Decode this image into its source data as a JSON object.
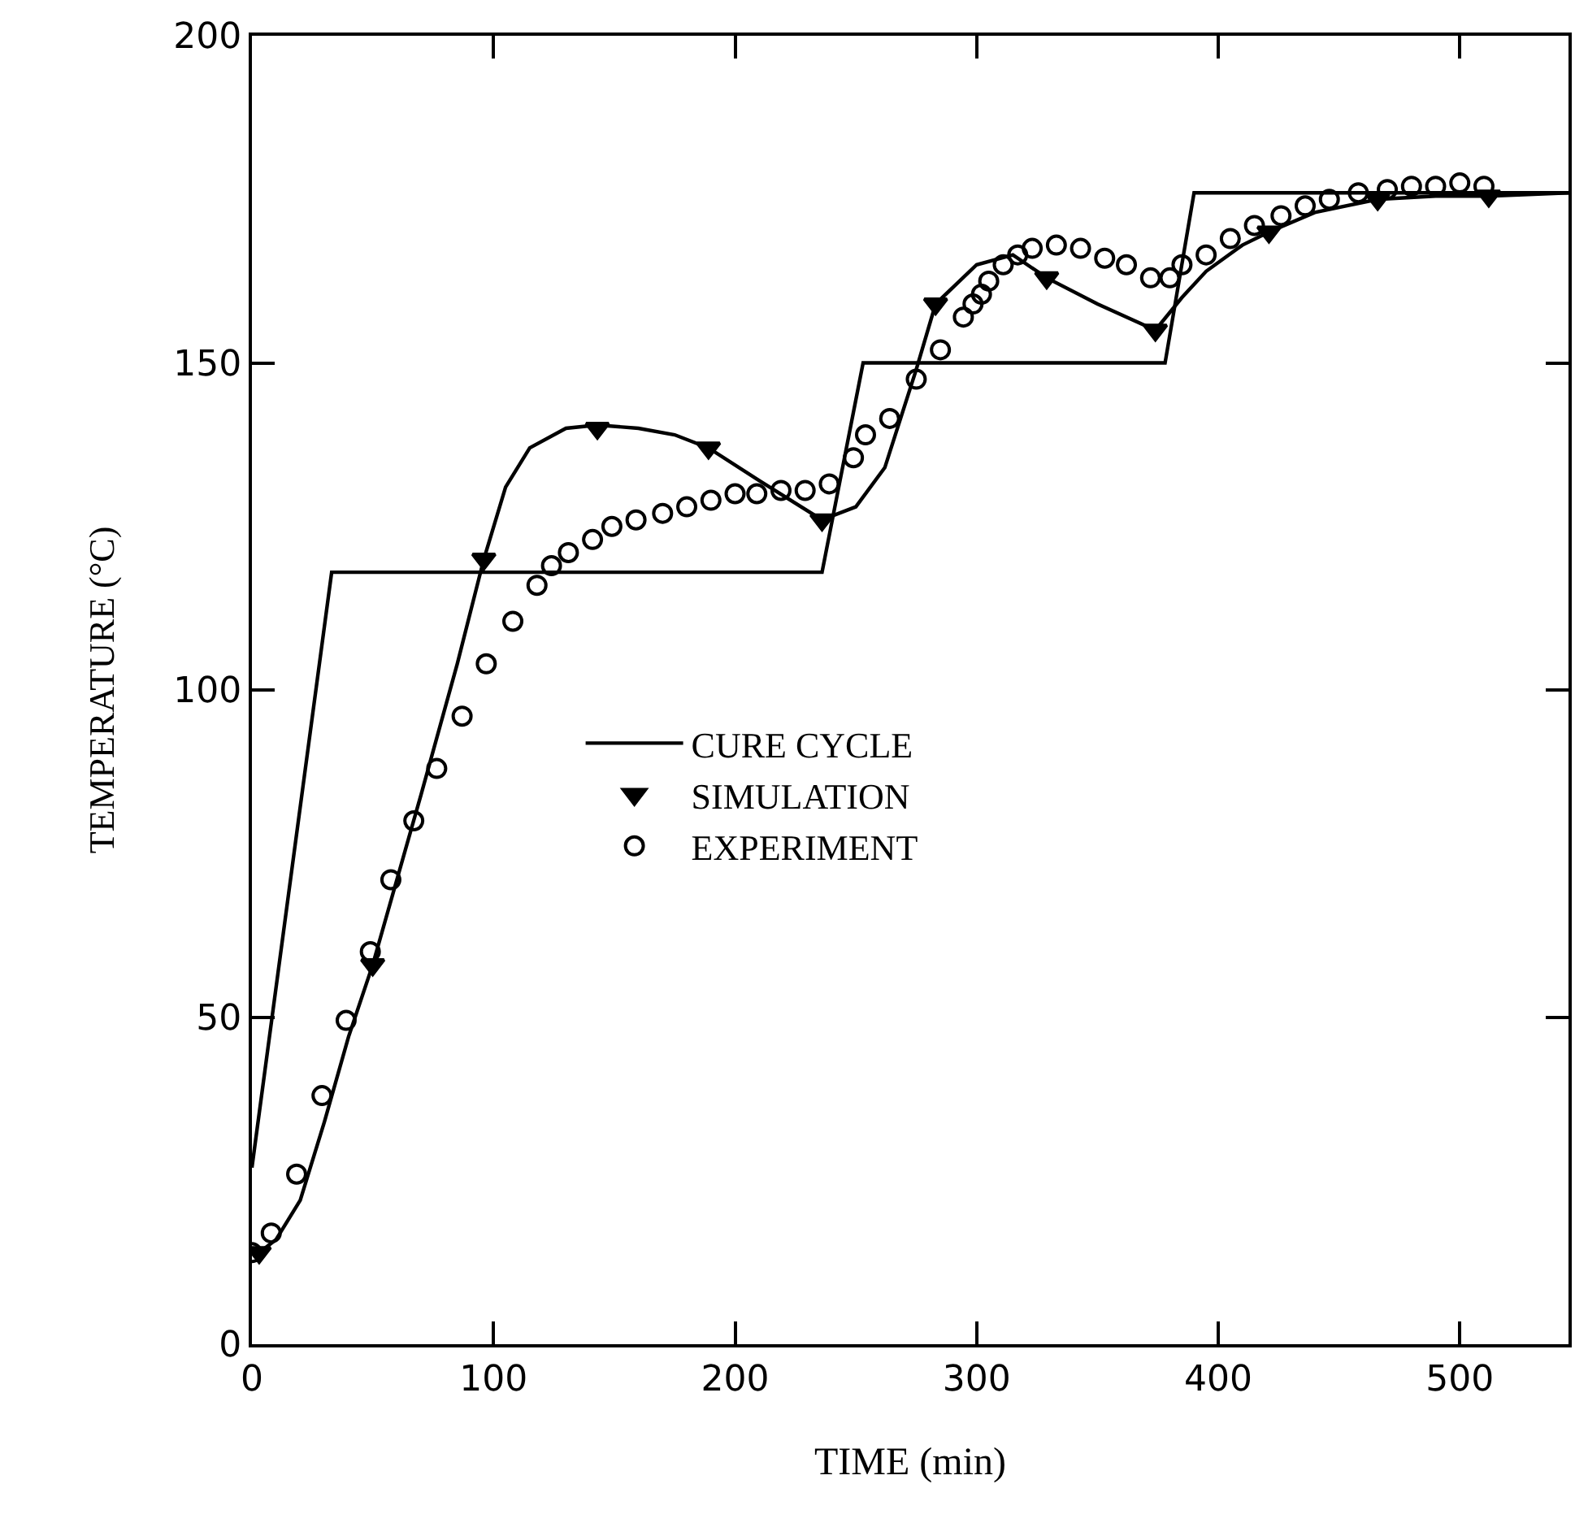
{
  "chart_data": {
    "type": "line",
    "xlabel": "TIME (min)",
    "ylabel": "TEMPERATURE (°C)",
    "xlim": [
      0,
      545
    ],
    "ylim": [
      0,
      200
    ],
    "xticks": [
      0,
      100,
      200,
      300,
      400,
      500
    ],
    "yticks": [
      0,
      50,
      100,
      150,
      200
    ],
    "legend": "center",
    "series": [
      {
        "name": "CURE CYCLE",
        "color": "#000000",
        "marker": "none",
        "x": [
          0,
          33,
          236,
          253,
          378,
          390,
          545
        ],
        "values": [
          27,
          118,
          118,
          150,
          150,
          176,
          176
        ]
      },
      {
        "color": "#000000",
        "marker": "none",
        "x": [
          3,
          10,
          20,
          30,
          40,
          50,
          70,
          85,
          96,
          105,
          115,
          130,
          143,
          160,
          175,
          189,
          210,
          236,
          250,
          262,
          275,
          283,
          300,
          315,
          329,
          350,
          374,
          385,
          395,
          410,
          421,
          440,
          466,
          490,
          512,
          545
        ],
        "values": [
          14,
          16,
          22,
          34,
          47,
          58,
          84,
          104,
          120,
          131,
          137,
          140,
          140.5,
          140,
          139,
          137,
          132,
          126,
          128,
          134,
          149,
          159,
          165,
          166.5,
          163,
          159,
          155,
          160,
          164,
          168,
          170,
          173,
          175,
          175.5,
          175.5,
          176
        ]
      },
      {
        "name": "SIMULATION",
        "type": "scatter",
        "color": "#000000",
        "marker": "triangle",
        "x": [
          3,
          50,
          96,
          143,
          189,
          236,
          283,
          329,
          374,
          421,
          466,
          512
        ],
        "values": [
          14,
          58,
          120,
          140,
          137,
          126,
          159,
          163,
          155,
          170,
          175,
          175.5
        ]
      },
      {
        "name": "EXPERIMENT",
        "type": "scatter",
        "color": "#000000",
        "marker": "circle",
        "x": [
          0,
          8,
          18.5,
          29,
          39,
          49,
          57.5,
          67,
          76.5,
          87,
          97,
          108,
          118,
          124,
          131,
          141,
          149,
          159,
          170,
          180,
          190,
          200,
          209,
          219,
          229,
          239,
          249,
          254,
          264,
          275,
          285,
          294.5,
          298.5,
          302,
          305,
          311,
          317,
          323,
          333,
          343,
          353,
          362,
          372,
          380,
          385,
          395,
          405,
          415,
          426,
          436,
          446,
          458,
          470,
          480,
          490,
          500,
          510
        ],
        "values": [
          14,
          17,
          26,
          38,
          49.5,
          60,
          71,
          80,
          88,
          96,
          104,
          110.5,
          116,
          119,
          121,
          123,
          125,
          126,
          127,
          128,
          129,
          130,
          130,
          130.5,
          130.5,
          131.5,
          135.5,
          139,
          141.5,
          147.5,
          152,
          157,
          159,
          160.5,
          162.5,
          165,
          166.5,
          167.5,
          168,
          167.5,
          166,
          165,
          163,
          163,
          165,
          166.5,
          169,
          171,
          172.5,
          174,
          175,
          176,
          176.5,
          177,
          177,
          177.5,
          177
        ]
      }
    ]
  }
}
